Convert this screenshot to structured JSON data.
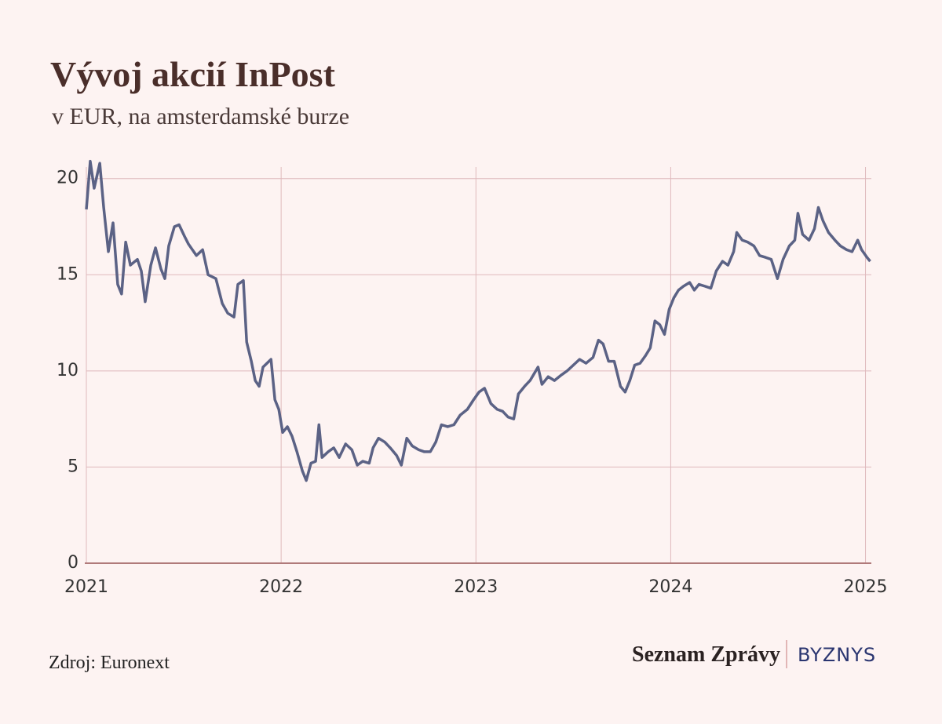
{
  "title": "Vývoj akcií InPost",
  "subtitle": "v EUR, na amsterdamské burze",
  "source": "Zdroj: Euronext",
  "brand": {
    "name": "Seznam Zprávy",
    "section": "BYZNYS"
  },
  "chart_data": {
    "type": "line",
    "xlim": [
      2021,
      2025.03
    ],
    "ylim": [
      0,
      20.6
    ],
    "xticks": [
      2021,
      2022,
      2023,
      2024,
      2025
    ],
    "yticks": [
      0,
      5,
      10,
      15,
      20
    ],
    "grid": true,
    "x": [
      2021.0,
      2021.02,
      2021.04,
      2021.069,
      2021.089,
      2021.113,
      2021.137,
      2021.161,
      2021.181,
      2021.202,
      2021.226,
      2021.262,
      2021.282,
      2021.302,
      2021.331,
      2021.355,
      2021.383,
      2021.403,
      2021.423,
      2021.452,
      2021.476,
      2021.504,
      2021.524,
      2021.565,
      2021.597,
      2021.625,
      2021.665,
      2021.698,
      2021.726,
      2021.758,
      2021.778,
      2021.806,
      2021.823,
      2021.847,
      2021.867,
      2021.887,
      2021.907,
      2021.948,
      2021.968,
      2021.988,
      2022.008,
      2022.032,
      2022.056,
      2022.081,
      2022.109,
      2022.129,
      2022.153,
      2022.177,
      2022.194,
      2022.21,
      2022.242,
      2022.27,
      2022.298,
      2022.331,
      2022.363,
      2022.391,
      2022.419,
      2022.452,
      2022.472,
      2022.5,
      2022.532,
      2022.56,
      2022.593,
      2022.617,
      2022.645,
      2022.673,
      2022.706,
      2022.734,
      2022.766,
      2022.794,
      2022.823,
      2022.855,
      2022.887,
      2022.919,
      2022.956,
      2022.988,
      2023.016,
      2023.044,
      2023.077,
      2023.109,
      2023.137,
      2023.165,
      2023.194,
      2023.218,
      2023.25,
      2023.278,
      2023.319,
      2023.339,
      2023.371,
      2023.403,
      2023.44,
      2023.468,
      2023.5,
      2023.532,
      2023.565,
      2023.601,
      2023.629,
      2023.653,
      2023.681,
      2023.71,
      2023.742,
      2023.766,
      2023.79,
      2023.815,
      2023.843,
      2023.871,
      2023.895,
      2023.919,
      2023.944,
      2023.968,
      2023.992,
      2024.016,
      2024.04,
      2024.065,
      2024.097,
      2024.121,
      2024.145,
      2024.177,
      2024.206,
      2024.234,
      2024.266,
      2024.294,
      2024.323,
      2024.339,
      2024.367,
      2024.395,
      2024.427,
      2024.456,
      2024.488,
      2024.516,
      2024.548,
      2024.577,
      2024.609,
      2024.637,
      2024.653,
      2024.677,
      2024.71,
      2024.738,
      2024.758,
      2024.782,
      2024.81,
      2024.843,
      2024.871,
      2024.903,
      2024.931,
      2024.96,
      2024.98,
      2025.008,
      2025.024
    ],
    "series": [
      {
        "name": "InPost",
        "color": "#5b6285",
        "values": [
          18.4,
          20.9,
          19.5,
          20.8,
          18.5,
          16.2,
          17.7,
          14.5,
          14.0,
          16.7,
          15.5,
          15.8,
          15.2,
          13.6,
          15.5,
          16.4,
          15.3,
          14.8,
          16.5,
          17.5,
          17.6,
          17.0,
          16.6,
          16.0,
          16.3,
          15.0,
          14.8,
          13.5,
          13.0,
          12.8,
          14.5,
          14.7,
          11.5,
          10.5,
          9.5,
          9.2,
          10.2,
          10.6,
          8.5,
          8.0,
          6.8,
          7.1,
          6.6,
          5.8,
          4.8,
          4.3,
          5.2,
          5.3,
          7.2,
          5.5,
          5.8,
          6.0,
          5.5,
          6.2,
          5.9,
          5.1,
          5.3,
          5.2,
          6.0,
          6.5,
          6.3,
          6.0,
          5.6,
          5.1,
          6.5,
          6.1,
          5.9,
          5.8,
          5.8,
          6.3,
          7.2,
          7.1,
          7.2,
          7.7,
          8.0,
          8.5,
          8.9,
          9.1,
          8.3,
          8.0,
          7.9,
          7.6,
          7.5,
          8.8,
          9.2,
          9.5,
          10.2,
          9.3,
          9.7,
          9.5,
          9.8,
          10.0,
          10.3,
          10.6,
          10.4,
          10.7,
          11.6,
          11.4,
          10.5,
          10.5,
          9.2,
          8.9,
          9.5,
          10.3,
          10.4,
          10.8,
          11.2,
          12.6,
          12.4,
          11.9,
          13.2,
          13.8,
          14.2,
          14.4,
          14.6,
          14.2,
          14.5,
          14.4,
          14.3,
          15.2,
          15.7,
          15.5,
          16.2,
          17.2,
          16.8,
          16.7,
          16.5,
          16.0,
          15.9,
          15.8,
          14.8,
          15.8,
          16.5,
          16.8,
          18.2,
          17.1,
          16.8,
          17.4,
          18.5,
          17.8,
          17.2,
          16.8,
          16.5,
          16.3,
          16.2,
          16.8,
          16.3,
          15.9,
          15.7
        ]
      }
    ]
  }
}
